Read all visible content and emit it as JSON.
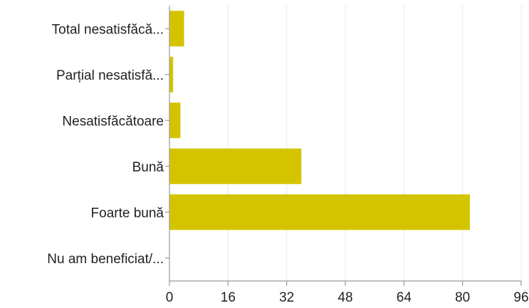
{
  "chart_data": {
    "type": "bar",
    "orientation": "horizontal",
    "categories": [
      "Total nesatisfăcă...",
      "Parțial nesatisfă...",
      "Nesatisfăcătoare",
      "Bună",
      "Foarte bună",
      "Nu am beneficiat/..."
    ],
    "values": [
      4,
      1,
      3,
      36,
      82,
      0
    ],
    "xlim": [
      0,
      96
    ],
    "xticks": [
      "0",
      "16",
      "32",
      "48",
      "64",
      "80",
      "96"
    ],
    "grid": true,
    "legend": "none"
  },
  "colors": {
    "bar": "#d4c400",
    "grid": "#e8e8e8",
    "axis": "#9a9a9a",
    "text": "#222222"
  }
}
